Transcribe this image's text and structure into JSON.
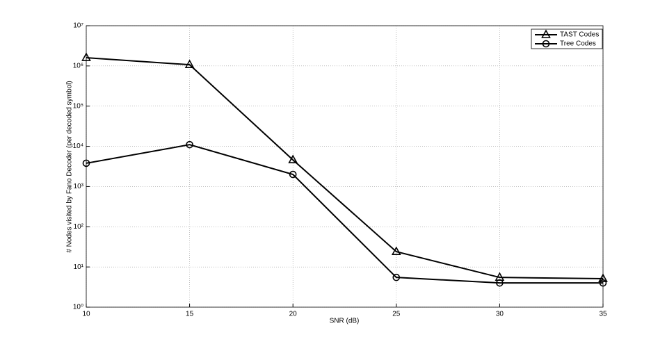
{
  "chart_data": {
    "type": "line",
    "xlabel": "SNR (dB)",
    "ylabel": "# Nodes visited by Fano Decoder (per decoded symbol)",
    "x": [
      10,
      15,
      20,
      25,
      30,
      35
    ],
    "series": [
      {
        "name": "TAST Codes",
        "color": "#000000",
        "marker": "triangle",
        "values": [
          1600000,
          1070000,
          4600,
          24,
          5.5,
          5.1
        ]
      },
      {
        "name": "Tree Codes",
        "color": "#000000",
        "marker": "circle",
        "values": [
          3800,
          11000,
          2000,
          5.5,
          4.0,
          4.0
        ]
      }
    ],
    "xlim": [
      10,
      35
    ],
    "xticks": [
      10,
      15,
      20,
      25,
      30,
      35
    ],
    "ylim": [
      1,
      10000000
    ],
    "yticks": [
      {
        "value": 1,
        "label": "10⁰"
      },
      {
        "value": 10,
        "label": "10¹"
      },
      {
        "value": 100,
        "label": "10²"
      },
      {
        "value": 1000,
        "label": "10³"
      },
      {
        "value": 10000,
        "label": "10⁴"
      },
      {
        "value": 100000,
        "label": "10⁵"
      },
      {
        "value": 1000000,
        "label": "10⁶"
      },
      {
        "value": 10000000,
        "label": "10⁷"
      }
    ],
    "ylog": true,
    "grid": true,
    "legend": "upper right"
  }
}
